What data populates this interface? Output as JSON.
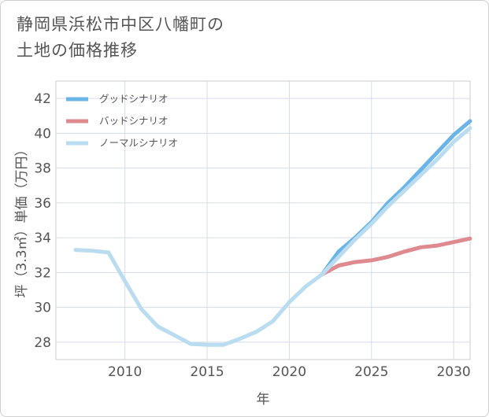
{
  "chart_title": {
    "line1": "静岡県浜松市中区八幡町の",
    "line2": "土地の価格推移"
  },
  "chart_data": {
    "type": "line",
    "title": "静岡県浜松市中区八幡町の土地の価格推移",
    "xlabel": "年",
    "ylabel": "坪（3.3㎡）単価（万円）",
    "xlim": [
      2005.8,
      2031
    ],
    "ylim": [
      27,
      43
    ],
    "xticks": [
      2010,
      2015,
      2020,
      2025,
      2030
    ],
    "yticks": [
      28,
      30,
      32,
      34,
      36,
      38,
      40,
      42
    ],
    "grid": true,
    "legend_position": "top-left",
    "series": [
      {
        "name": "グッドシナリオ",
        "color": "#6ab4e8",
        "x": [
          2022,
          2023,
          2024,
          2025,
          2026,
          2027,
          2028,
          2029,
          2030,
          2031
        ],
        "y": [
          31.9,
          33.2,
          34.0,
          34.9,
          36.0,
          36.9,
          37.9,
          38.9,
          39.9,
          40.7
        ]
      },
      {
        "name": "バッドシナリオ",
        "color": "#de8a8f",
        "x": [
          2022,
          2023,
          2024,
          2025,
          2026,
          2027,
          2028,
          2029,
          2030,
          2031
        ],
        "y": [
          31.9,
          32.4,
          32.6,
          32.7,
          32.9,
          33.2,
          33.45,
          33.55,
          33.75,
          33.95
        ]
      },
      {
        "name": "ノーマルシナリオ",
        "color": "#b9dcf0",
        "x": [
          2007,
          2008,
          2009,
          2010,
          2011,
          2012,
          2013,
          2014,
          2015,
          2016,
          2017,
          2018,
          2019,
          2020,
          2021,
          2022,
          2023,
          2024,
          2025,
          2026,
          2027,
          2028,
          2029,
          2030,
          2031
        ],
        "y": [
          33.3,
          33.25,
          33.15,
          31.5,
          29.9,
          28.9,
          28.4,
          27.9,
          27.85,
          27.85,
          28.2,
          28.6,
          29.2,
          30.3,
          31.2,
          31.9,
          32.9,
          33.9,
          34.8,
          35.8,
          36.7,
          37.6,
          38.5,
          39.5,
          40.3
        ]
      }
    ]
  }
}
